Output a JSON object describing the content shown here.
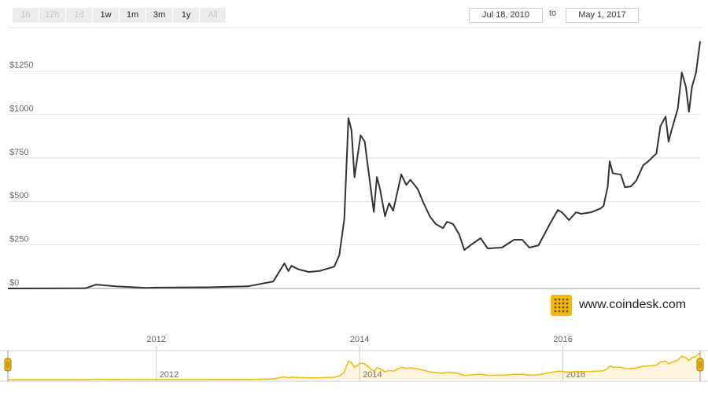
{
  "ui": {
    "buttons": [
      {
        "label": "1h",
        "enabled": false
      },
      {
        "label": "12h",
        "enabled": false
      },
      {
        "label": "1d",
        "enabled": false
      },
      {
        "label": "1w",
        "enabled": true
      },
      {
        "label": "1m",
        "enabled": true
      },
      {
        "label": "3m",
        "enabled": true
      },
      {
        "label": "1y",
        "enabled": true
      },
      {
        "label": "All",
        "enabled": false
      }
    ],
    "date_from": "Jul 18, 2010",
    "date_separator": "to",
    "date_to": "May 1, 2017",
    "brand": "www.coindesk.com"
  },
  "chart_data": {
    "type": "line",
    "color": "#333333",
    "navigator_color": "#f0b90b",
    "grid": true,
    "x": [
      2010.54,
      2011.0,
      2011.3,
      2011.41,
      2011.6,
      2011.9,
      2012.0,
      2012.5,
      2012.9,
      2013.15,
      2013.26,
      2013.3,
      2013.33,
      2013.4,
      2013.5,
      2013.6,
      2013.75,
      2013.8,
      2013.85,
      2013.89,
      2013.92,
      2013.95,
      2014.01,
      2014.05,
      2014.08,
      2014.14,
      2014.17,
      2014.2,
      2014.25,
      2014.29,
      2014.33,
      2014.41,
      2014.46,
      2014.5,
      2014.57,
      2014.63,
      2014.69,
      2014.75,
      2014.82,
      2014.86,
      2014.92,
      2014.98,
      2015.03,
      2015.09,
      2015.19,
      2015.26,
      2015.4,
      2015.52,
      2015.6,
      2015.67,
      2015.76,
      2015.83,
      2015.87,
      2015.95,
      2015.99,
      2016.06,
      2016.13,
      2016.18,
      2016.28,
      2016.37,
      2016.4,
      2016.44,
      2016.46,
      2016.49,
      2016.57,
      2016.61,
      2016.67,
      2016.72,
      2016.79,
      2016.84,
      2016.92,
      2016.96,
      2017.01,
      2017.04,
      2017.07,
      2017.13,
      2017.17,
      2017.21,
      2017.24,
      2017.27,
      2017.31,
      2017.35
    ],
    "values": [
      0.1,
      0.3,
      1,
      22,
      12,
      3,
      5,
      7,
      12,
      40,
      144,
      100,
      130,
      110,
      95,
      100,
      125,
      190,
      400,
      979,
      910,
      640,
      880,
      845,
      710,
      440,
      640,
      573,
      415,
      490,
      447,
      655,
      595,
      625,
      573,
      490,
      415,
      370,
      347,
      383,
      370,
      311,
      221,
      248,
      289,
      230,
      235,
      280,
      280,
      235,
      248,
      325,
      370,
      451,
      438,
      393,
      438,
      429,
      438,
      460,
      474,
      582,
      731,
      663,
      654,
      582,
      587,
      618,
      708,
      731,
      776,
      934,
      988,
      844,
      912,
      1033,
      1241,
      1160,
      1015,
      1160,
      1241,
      1421
    ],
    "xlim": [
      2010.54,
      2017.35
    ],
    "xticks": [
      2012,
      2014,
      2016
    ],
    "ylim": [
      0,
      1500
    ],
    "yticks": [
      {
        "value": 0,
        "label": "$0"
      },
      {
        "value": 250,
        "label": "$250"
      },
      {
        "value": 500,
        "label": "$500"
      },
      {
        "value": 750,
        "label": "$750"
      },
      {
        "value": 1000,
        "label": "$1000"
      },
      {
        "value": 1250,
        "label": "$1250"
      }
    ]
  }
}
